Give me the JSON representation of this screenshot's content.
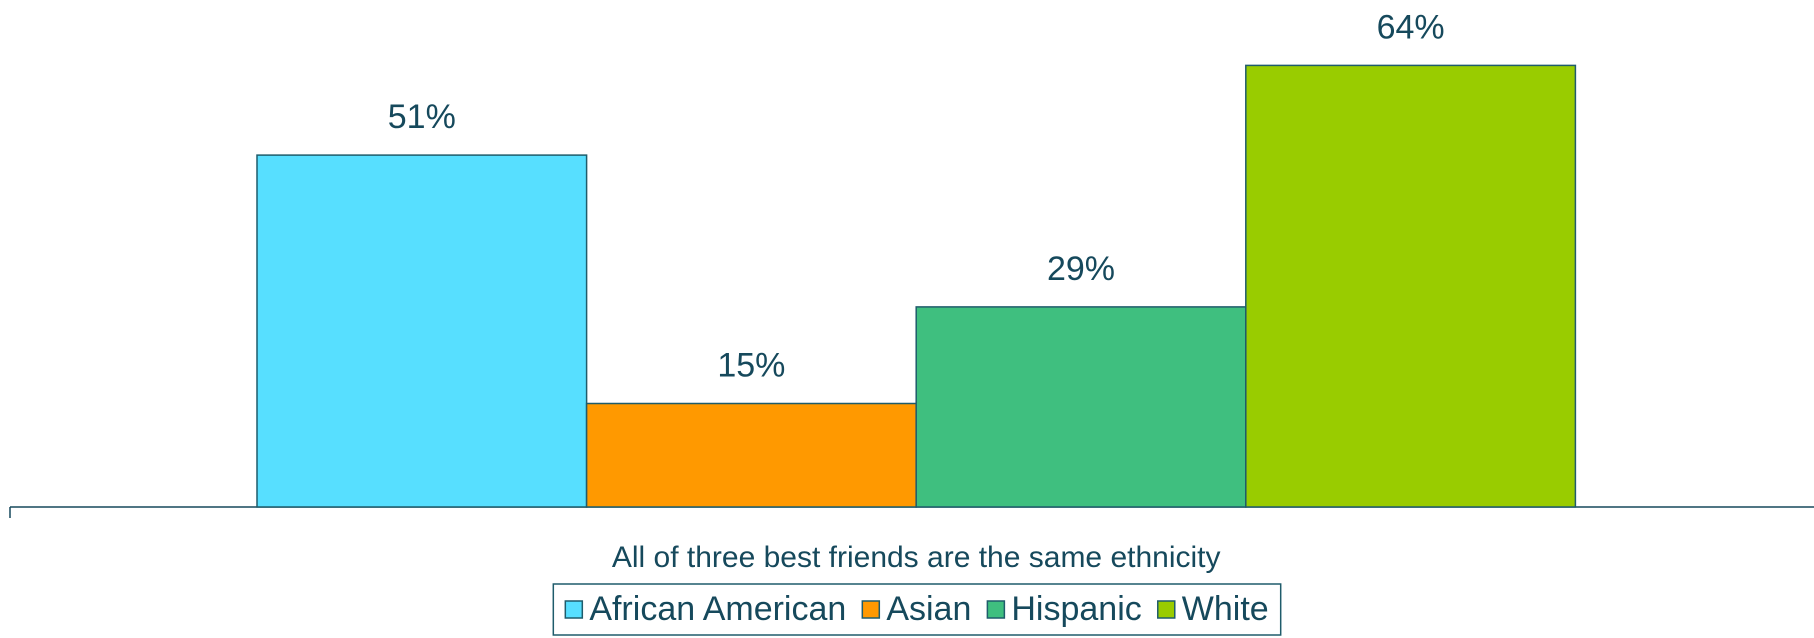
{
  "chart_data": {
    "type": "bar",
    "categories": [
      "All of three best friends are the same ethnicity"
    ],
    "series": [
      {
        "name": "African American",
        "color": "#57dfff",
        "values": [
          51
        ],
        "value_labels": [
          "51%"
        ]
      },
      {
        "name": "Asian",
        "color": "#ff9900",
        "values": [
          15
        ],
        "value_labels": [
          "15%"
        ]
      },
      {
        "name": "Hispanic",
        "color": "#3fbf7f",
        "values": [
          29
        ],
        "value_labels": [
          "29%"
        ]
      },
      {
        "name": "White",
        "color": "#99cc00",
        "values": [
          64
        ],
        "value_labels": [
          "64%"
        ]
      }
    ],
    "legend": "bottom"
  }
}
